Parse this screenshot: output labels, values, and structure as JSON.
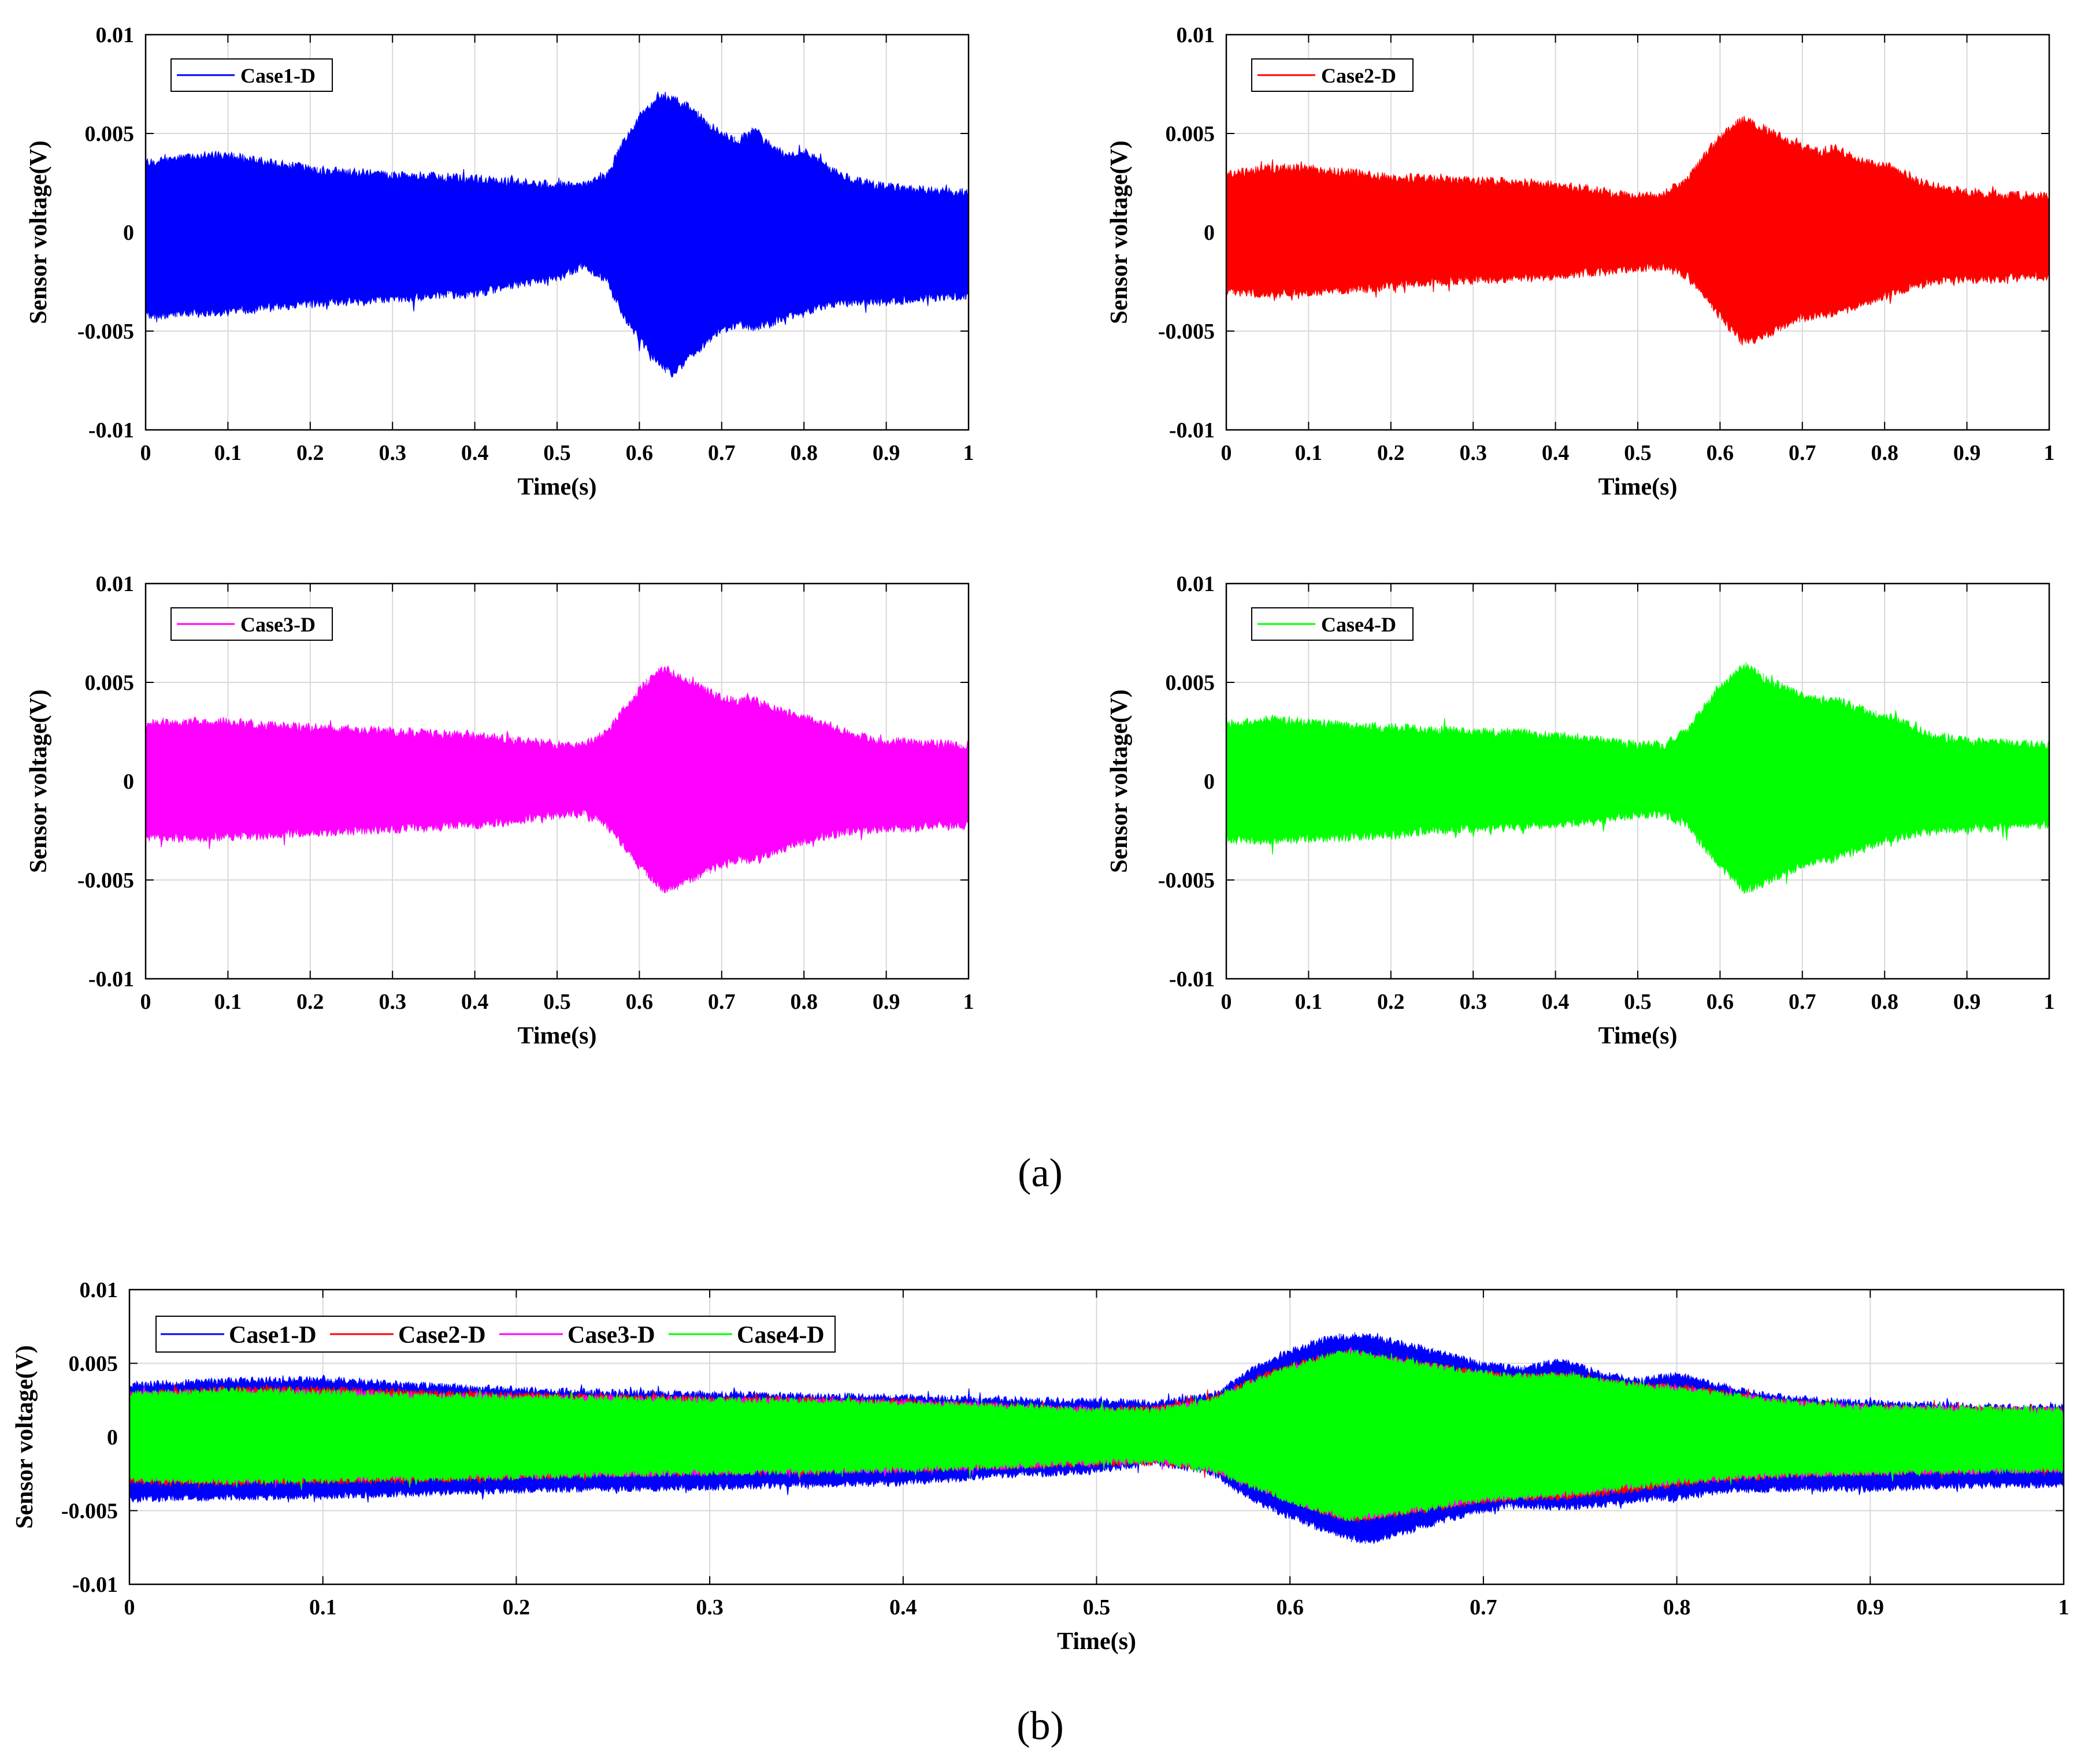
{
  "colors": {
    "case1": "#0000ff",
    "case2": "#ff0000",
    "case3": "#ff00ff",
    "case4": "#00ff00"
  },
  "panel_labels": {
    "a": "(a)",
    "b": "(b)"
  },
  "chart_data": [
    {
      "id": "a1",
      "type": "line",
      "series_name": "Case1-D",
      "color": "#0000ff",
      "xlabel": "Time(s)",
      "ylabel": "Sensor voltage(V)",
      "xlim": [
        0,
        1
      ],
      "ylim": [
        -0.01,
        0.01
      ],
      "xticks": [
        0,
        0.1,
        0.2,
        0.3,
        0.4,
        0.5,
        0.6,
        0.7,
        0.8,
        0.9,
        1
      ],
      "xtick_labels": [
        "0",
        "0.1",
        "0.2",
        "0.3",
        "0.4",
        "0.5",
        "0.6",
        "0.7",
        "0.8",
        "0.9",
        "1"
      ],
      "yticks": [
        0.01,
        0.005,
        0,
        -0.005,
        -0.01
      ],
      "ytick_labels": [
        "0.01",
        "0.005",
        "0",
        "-0.005",
        "-0.01"
      ],
      "grid": true,
      "legend_location": "top-left",
      "envelope": {
        "t": [
          0,
          0.05,
          0.1,
          0.15,
          0.2,
          0.25,
          0.3,
          0.35,
          0.4,
          0.45,
          0.5,
          0.53,
          0.56,
          0.58,
          0.6,
          0.62,
          0.64,
          0.66,
          0.68,
          0.7,
          0.72,
          0.74,
          0.76,
          0.78,
          0.8,
          0.83,
          0.86,
          0.9,
          0.95,
          1
        ],
        "upper": [
          0.0035,
          0.0038,
          0.0039,
          0.0035,
          0.0032,
          0.003,
          0.0029,
          0.0028,
          0.0027,
          0.0025,
          0.0024,
          0.0023,
          0.0028,
          0.0045,
          0.0058,
          0.0067,
          0.0068,
          0.0063,
          0.0056,
          0.0049,
          0.0046,
          0.0052,
          0.0043,
          0.0038,
          0.0042,
          0.0032,
          0.0026,
          0.0023,
          0.0021,
          0.002
        ],
        "lower": [
          -0.0042,
          -0.0041,
          -0.004,
          -0.0038,
          -0.0036,
          -0.0035,
          -0.0034,
          -0.0032,
          -0.0031,
          -0.0026,
          -0.0023,
          -0.0017,
          -0.0024,
          -0.0042,
          -0.0054,
          -0.0064,
          -0.0071,
          -0.0064,
          -0.0056,
          -0.0049,
          -0.0046,
          -0.0048,
          -0.0046,
          -0.0042,
          -0.0041,
          -0.0036,
          -0.0035,
          -0.0035,
          -0.0033,
          -0.0032
        ]
      }
    },
    {
      "id": "a2",
      "type": "line",
      "series_name": "Case2-D",
      "color": "#ff0000",
      "xlabel": "Time(s)",
      "ylabel": "Sensor voltage(V)",
      "xlim": [
        0,
        1
      ],
      "ylim": [
        -0.01,
        0.01
      ],
      "xticks": [
        0,
        0.1,
        0.2,
        0.3,
        0.4,
        0.5,
        0.6,
        0.7,
        0.8,
        0.9,
        1
      ],
      "xtick_labels": [
        "0",
        "0.1",
        "0.2",
        "0.3",
        "0.4",
        "0.5",
        "0.6",
        "0.7",
        "0.8",
        "0.9",
        "1"
      ],
      "yticks": [
        0.01,
        0.005,
        0,
        -0.005,
        -0.01
      ],
      "ytick_labels": [
        "0.01",
        "0.005",
        "0",
        "-0.005",
        "-0.01"
      ],
      "grid": true,
      "legend_location": "top-left",
      "envelope": {
        "t": [
          0,
          0.05,
          0.1,
          0.15,
          0.2,
          0.25,
          0.3,
          0.35,
          0.4,
          0.45,
          0.5,
          0.53,
          0.56,
          0.58,
          0.6,
          0.62,
          0.63,
          0.65,
          0.68,
          0.7,
          0.72,
          0.74,
          0.76,
          0.78,
          0.8,
          0.83,
          0.86,
          0.9,
          0.95,
          1
        ],
        "upper": [
          0.0029,
          0.0032,
          0.0032,
          0.003,
          0.0028,
          0.0027,
          0.0026,
          0.0025,
          0.0024,
          0.0021,
          0.0018,
          0.0019,
          0.0026,
          0.0038,
          0.0048,
          0.0055,
          0.0057,
          0.0053,
          0.0047,
          0.0043,
          0.0041,
          0.0042,
          0.0038,
          0.0035,
          0.0034,
          0.0028,
          0.0023,
          0.002,
          0.0019,
          0.0018
        ],
        "lower": [
          -0.003,
          -0.0031,
          -0.003,
          -0.0029,
          -0.0027,
          -0.0025,
          -0.0024,
          -0.0023,
          -0.0022,
          -0.002,
          -0.0018,
          -0.0017,
          -0.0022,
          -0.0032,
          -0.0042,
          -0.0052,
          -0.0056,
          -0.0053,
          -0.0047,
          -0.0043,
          -0.0041,
          -0.0041,
          -0.0038,
          -0.0035,
          -0.0032,
          -0.0028,
          -0.0025,
          -0.0024,
          -0.0023,
          -0.0022
        ]
      }
    },
    {
      "id": "a3",
      "type": "line",
      "series_name": "Case3-D",
      "color": "#ff00ff",
      "xlabel": "Time(s)",
      "ylabel": "Sensor voltage(V)",
      "xlim": [
        0,
        1
      ],
      "ylim": [
        -0.01,
        0.01
      ],
      "xticks": [
        0,
        0.1,
        0.2,
        0.3,
        0.4,
        0.5,
        0.6,
        0.7,
        0.8,
        0.9,
        1
      ],
      "xtick_labels": [
        "0",
        "0.1",
        "0.2",
        "0.3",
        "0.4",
        "0.5",
        "0.6",
        "0.7",
        "0.8",
        "0.9",
        "1"
      ],
      "yticks": [
        0.01,
        0.005,
        0,
        -0.005,
        -0.01
      ],
      "ytick_labels": [
        "0.01",
        "0.005",
        "0",
        "-0.005",
        "-0.01"
      ],
      "grid": true,
      "legend_location": "top-left",
      "envelope": {
        "t": [
          0,
          0.05,
          0.1,
          0.15,
          0.2,
          0.25,
          0.3,
          0.35,
          0.4,
          0.45,
          0.5,
          0.53,
          0.56,
          0.58,
          0.6,
          0.62,
          0.63,
          0.65,
          0.68,
          0.7,
          0.72,
          0.74,
          0.76,
          0.78,
          0.8,
          0.83,
          0.86,
          0.9,
          0.95,
          1
        ],
        "upper": [
          0.0029,
          0.003,
          0.003,
          0.0028,
          0.0027,
          0.0026,
          0.0025,
          0.0024,
          0.0023,
          0.0021,
          0.0018,
          0.0018,
          0.0024,
          0.0036,
          0.0046,
          0.0054,
          0.0057,
          0.0052,
          0.0046,
          0.0042,
          0.004,
          0.0041,
          0.0037,
          0.0034,
          0.0033,
          0.0028,
          0.0023,
          0.002,
          0.0019,
          0.0018
        ],
        "lower": [
          -0.0028,
          -0.0029,
          -0.0028,
          -0.0027,
          -0.0026,
          -0.0025,
          -0.0024,
          -0.0023,
          -0.0022,
          -0.002,
          -0.0017,
          -0.0016,
          -0.0022,
          -0.0032,
          -0.0043,
          -0.0051,
          -0.0055,
          -0.0052,
          -0.0046,
          -0.0042,
          -0.004,
          -0.0039,
          -0.0036,
          -0.0033,
          -0.003,
          -0.0027,
          -0.0025,
          -0.0024,
          -0.0023,
          -0.0022
        ]
      }
    },
    {
      "id": "a4",
      "type": "line",
      "series_name": "Case4-D",
      "color": "#00ff00",
      "xlabel": "Time(s)",
      "ylabel": "Sensor voltage(V)",
      "xlim": [
        0,
        1
      ],
      "ylim": [
        -0.01,
        0.01
      ],
      "xticks": [
        0,
        0.1,
        0.2,
        0.3,
        0.4,
        0.5,
        0.6,
        0.7,
        0.8,
        0.9,
        1
      ],
      "xtick_labels": [
        "0",
        "0.1",
        "0.2",
        "0.3",
        "0.4",
        "0.5",
        "0.6",
        "0.7",
        "0.8",
        "0.9",
        "1"
      ],
      "yticks": [
        0.01,
        0.005,
        0,
        -0.005,
        -0.01
      ],
      "ytick_labels": [
        "0.01",
        "0.005",
        "0",
        "-0.005",
        "-0.01"
      ],
      "grid": true,
      "legend_location": "top-left",
      "envelope": {
        "t": [
          0,
          0.05,
          0.1,
          0.15,
          0.2,
          0.25,
          0.3,
          0.35,
          0.4,
          0.45,
          0.5,
          0.53,
          0.56,
          0.58,
          0.6,
          0.62,
          0.63,
          0.65,
          0.68,
          0.7,
          0.72,
          0.74,
          0.76,
          0.78,
          0.8,
          0.83,
          0.86,
          0.9,
          0.95,
          1
        ],
        "upper": [
          0.0029,
          0.0031,
          0.003,
          0.0028,
          0.0027,
          0.0026,
          0.0025,
          0.0024,
          0.0023,
          0.0021,
          0.0018,
          0.0018,
          0.0025,
          0.0037,
          0.0047,
          0.0055,
          0.0058,
          0.0053,
          0.0047,
          0.0043,
          0.0041,
          0.0042,
          0.0038,
          0.0035,
          0.0033,
          0.0028,
          0.0023,
          0.002,
          0.0019,
          0.0018
        ],
        "lower": [
          -0.0029,
          -0.003,
          -0.0029,
          -0.0028,
          -0.0027,
          -0.0025,
          -0.0024,
          -0.0023,
          -0.0022,
          -0.002,
          -0.0017,
          -0.0016,
          -0.0022,
          -0.0033,
          -0.0043,
          -0.0051,
          -0.0055,
          -0.0052,
          -0.0046,
          -0.0042,
          -0.004,
          -0.0039,
          -0.0036,
          -0.0033,
          -0.003,
          -0.0027,
          -0.0025,
          -0.0024,
          -0.0023,
          -0.0022
        ]
      }
    },
    {
      "id": "b",
      "type": "line",
      "series_names": [
        "Case1-D",
        "Case2-D",
        "Case3-D",
        "Case4-D"
      ],
      "xlabel": "Time(s)",
      "ylabel": "Sensor voltage(V)",
      "xlim": [
        0,
        1
      ],
      "ylim": [
        -0.01,
        0.01
      ],
      "xticks": [
        0,
        0.1,
        0.2,
        0.3,
        0.4,
        0.5,
        0.6,
        0.7,
        0.8,
        0.9,
        1
      ],
      "xtick_labels": [
        "0",
        "0.1",
        "0.2",
        "0.3",
        "0.4",
        "0.5",
        "0.6",
        "0.7",
        "0.8",
        "0.9",
        "1"
      ],
      "yticks": [
        0.01,
        0.005,
        0,
        -0.005,
        -0.01
      ],
      "ytick_labels": [
        "0.01",
        "0.005",
        "0",
        "-0.005",
        "-0.01"
      ],
      "grid": true,
      "legend_location": "top-left",
      "series": [
        {
          "name": "Case1-D",
          "color": "#0000ff",
          "ref": "a1"
        },
        {
          "name": "Case2-D",
          "color": "#ff0000",
          "ref": "a2"
        },
        {
          "name": "Case3-D",
          "color": "#ff00ff",
          "ref": "a3"
        },
        {
          "name": "Case4-D",
          "color": "#00ff00",
          "ref": "a4"
        }
      ]
    }
  ]
}
